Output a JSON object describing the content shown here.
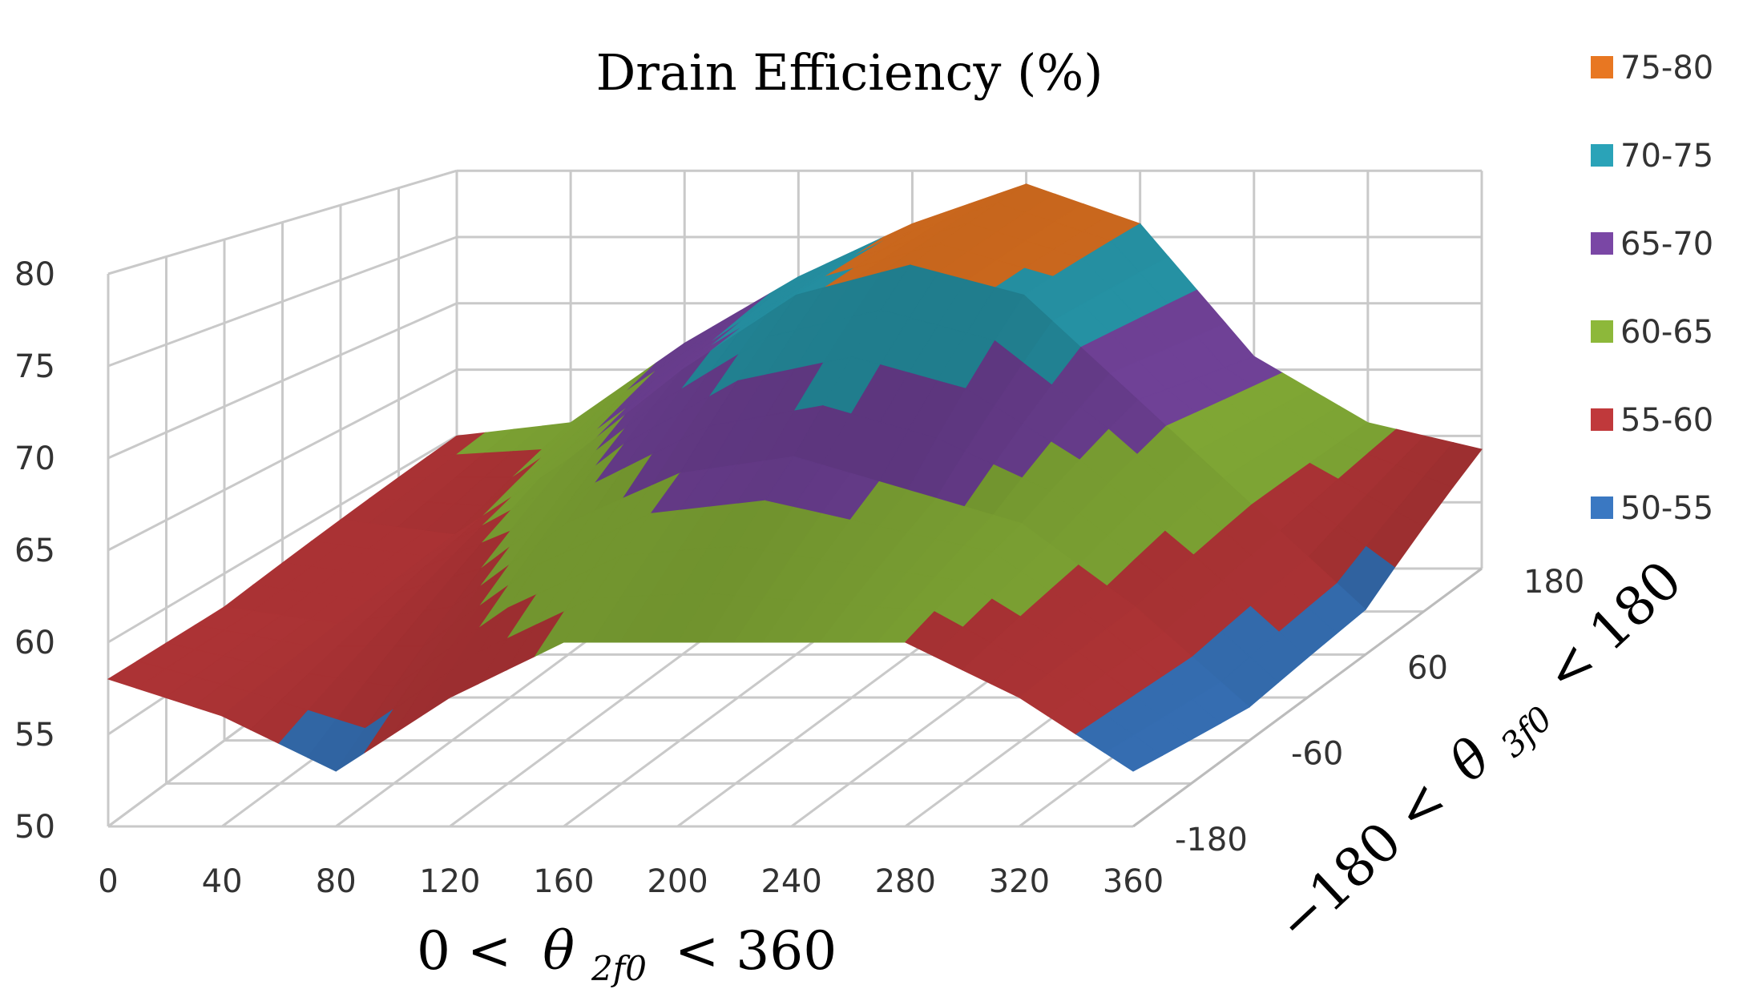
{
  "chart_data": {
    "type": "surface",
    "title": "Drain Efficiency (%)",
    "x_axis": {
      "label_lhs": "0 <",
      "label_symbol": "θ",
      "label_subscript": "2f0",
      "label_rhs": "< 360",
      "ticks": [
        "0",
        "40",
        "80",
        "120",
        "160",
        "200",
        "240",
        "280",
        "320",
        "360"
      ],
      "range": [
        0,
        360
      ]
    },
    "y_axis": {
      "label_lhs": "−180 <",
      "label_symbol": "θ",
      "label_subscript": "3f0",
      "label_rhs": "< 180",
      "ticks": [
        "-180",
        "-60",
        "60",
        "180"
      ],
      "range": [
        -180,
        180
      ]
    },
    "z_axis": {
      "ticks": [
        "50",
        "55",
        "60",
        "65",
        "70",
        "75",
        "80"
      ],
      "range": [
        50,
        80
      ]
    },
    "grid": true,
    "legend_position": "right",
    "legend": [
      {
        "label": "75-80",
        "color": "#E87722"
      },
      {
        "label": "70-75",
        "color": "#2AA3B8"
      },
      {
        "label": "65-70",
        "color": "#7A47A5"
      },
      {
        "label": "60-65",
        "color": "#8DB83A"
      },
      {
        "label": "55-60",
        "color": "#C0393B"
      },
      {
        "label": "50-55",
        "color": "#3A78C2"
      }
    ],
    "surface_rows": [
      {
        "theta3": -180,
        "values": [
          58,
          56,
          53,
          57,
          60,
          60,
          60,
          60,
          57,
          53
        ]
      },
      {
        "theta3": -60,
        "values": [
          58,
          57,
          58,
          63,
          66,
          67,
          65,
          63,
          58,
          52
        ]
      },
      {
        "theta3": 60,
        "values": [
          59,
          58,
          63,
          69,
          74,
          76,
          74,
          67,
          60,
          53
        ]
      },
      {
        "theta3": 180,
        "values": [
          60,
          61,
          67,
          72,
          76,
          79,
          76,
          66,
          61,
          59
        ]
      }
    ]
  }
}
